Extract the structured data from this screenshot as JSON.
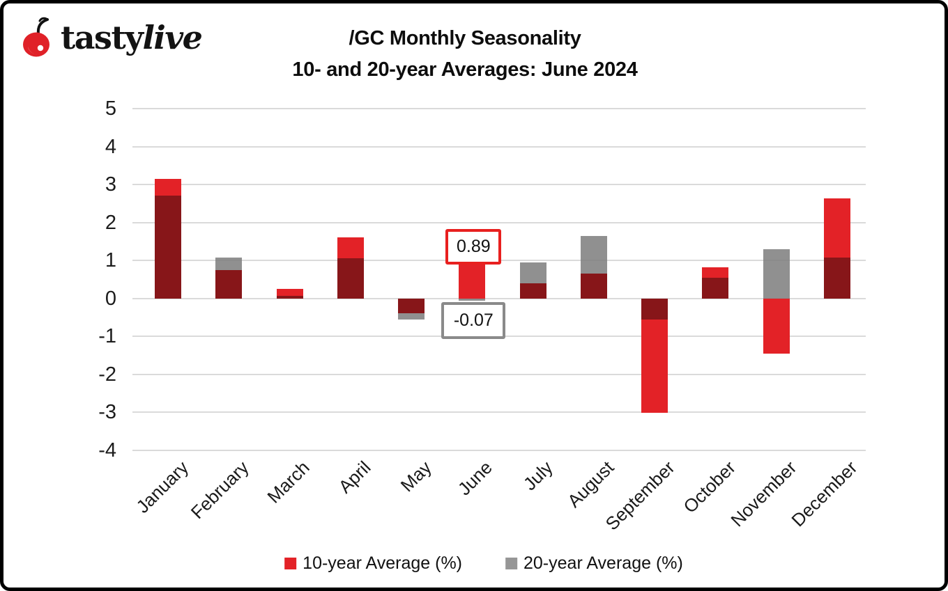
{
  "header": {
    "logo_regular": "tasty",
    "logo_italic": "live"
  },
  "colors": {
    "red": "#e32227",
    "maroon_overlap": "#871619",
    "gray": "#969696",
    "gridline": "#dadada",
    "callout_red_border": "#e8201f",
    "callout_gray_border": "#8a8a8a"
  },
  "chart_data": {
    "type": "bar",
    "title": "/GC Monthly Seasonality",
    "subtitle": "10- and 20-year Averages: June 2024",
    "categories": [
      "January",
      "February",
      "March",
      "April",
      "May",
      "June",
      "July",
      "August",
      "September",
      "October",
      "November",
      "December"
    ],
    "series": [
      {
        "name": "10-year Average (%)",
        "color": "#e32227",
        "values": [
          3.15,
          0.75,
          0.25,
          1.6,
          -0.4,
          0.89,
          0.4,
          0.65,
          -3.02,
          0.82,
          -1.45,
          2.63
        ]
      },
      {
        "name": "20-year Average (%)",
        "color": "#969696",
        "values": [
          2.7,
          1.08,
          0.07,
          1.05,
          -0.55,
          -0.07,
          0.95,
          1.65,
          -0.55,
          0.55,
          1.3,
          1.07
        ]
      }
    ],
    "overlap_color": "#871619",
    "ylim": [
      -4,
      5
    ],
    "yticks": [
      5,
      4,
      3,
      2,
      1,
      0,
      -1,
      -2,
      -3,
      -4
    ],
    "grid": true,
    "legend_position": "bottom",
    "annotations": [
      {
        "category": "June",
        "series": "10-year Average (%)",
        "text": "0.89",
        "value": 0.89,
        "placement": "above",
        "border_color": "#e8201f"
      },
      {
        "category": "June",
        "series": "20-year Average (%)",
        "text": "-0.07",
        "value": -0.07,
        "placement": "below",
        "border_color": "#8a8a8a"
      }
    ]
  }
}
